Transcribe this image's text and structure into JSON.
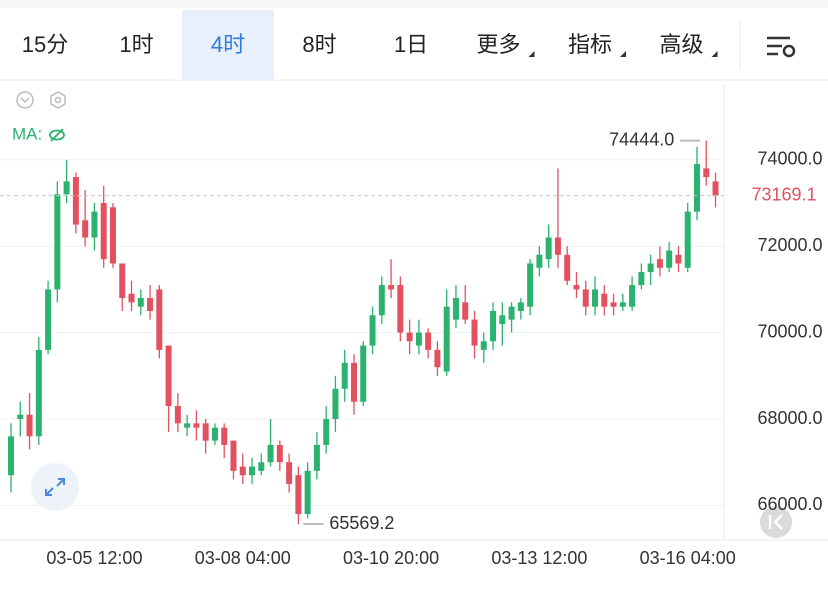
{
  "toolbar": {
    "tabs": [
      {
        "label": "15分",
        "dropdown": false
      },
      {
        "label": "1时",
        "dropdown": false
      },
      {
        "label": "4时",
        "dropdown": false
      },
      {
        "label": "8时",
        "dropdown": false
      },
      {
        "label": "1日",
        "dropdown": false
      },
      {
        "label": "更多",
        "dropdown": true
      },
      {
        "label": "指标",
        "dropdown": true
      },
      {
        "label": "高级",
        "dropdown": true
      }
    ],
    "active": 2
  },
  "indicator": "MA:",
  "chart_data": {
    "type": "candlestick",
    "categories": [
      null,
      null,
      null,
      null,
      null,
      null,
      null,
      null,
      null,
      "03-05 12:00",
      null,
      null,
      null,
      null,
      null,
      null,
      null,
      null,
      null,
      null,
      null,
      null,
      null,
      null,
      null,
      "03-08 04:00",
      null,
      null,
      null,
      null,
      null,
      null,
      null,
      null,
      null,
      null,
      null,
      null,
      null,
      null,
      null,
      "03-10 20:00",
      null,
      null,
      null,
      null,
      null,
      null,
      null,
      null,
      null,
      null,
      null,
      null,
      null,
      null,
      null,
      "03-13 12:00",
      null,
      null,
      null,
      null,
      null,
      null,
      null,
      null,
      null,
      null,
      null,
      null,
      null,
      null,
      null,
      "03-16 04:00",
      null,
      null,
      null
    ],
    "open": [
      66700,
      68000,
      68100,
      67600,
      69600,
      71000,
      73200,
      73600,
      72600,
      72200,
      73000,
      72900,
      71600,
      70900,
      70600,
      70800,
      71000,
      69700,
      68300,
      67800,
      67900,
      67900,
      67500,
      67800,
      67500,
      66900,
      66700,
      66800,
      67000,
      67400,
      67000,
      66700,
      65800,
      66800,
      67400,
      68000,
      68700,
      69300,
      68400,
      69700,
      70400,
      71100,
      71100,
      70000,
      69700,
      70000,
      69600,
      69100,
      70300,
      70700,
      70300,
      69600,
      69800,
      70200,
      70300,
      70500,
      70600,
      71500,
      71700,
      72200,
      71800,
      71100,
      71000,
      70600,
      70900,
      70700,
      70600,
      70600,
      71100,
      71400,
      71700,
      71500,
      71800,
      71500,
      72800,
      73800,
      73500
    ],
    "high": [
      67900,
      68400,
      68600,
      69900,
      71200,
      73500,
      74000,
      73700,
      73300,
      73000,
      73400,
      73000,
      71600,
      71200,
      71000,
      71100,
      71100,
      69700,
      68600,
      68100,
      68200,
      68000,
      67900,
      67900,
      67500,
      67200,
      67100,
      67200,
      68000,
      67500,
      67200,
      66900,
      67000,
      67700,
      68300,
      69000,
      69600,
      69500,
      69800,
      70600,
      71300,
      71700,
      71300,
      70300,
      70300,
      70100,
      69800,
      71000,
      71100,
      71100,
      70500,
      70000,
      70700,
      70700,
      70700,
      70800,
      71700,
      72000,
      72500,
      73800,
      72000,
      71400,
      71200,
      71300,
      71100,
      70900,
      70900,
      71300,
      71600,
      71800,
      72000,
      72100,
      72000,
      73000,
      74300,
      74444,
      73700
    ],
    "low": [
      66300,
      67600,
      67300,
      67400,
      69500,
      70700,
      73000,
      72300,
      72000,
      71900,
      71500,
      71500,
      70500,
      70500,
      70400,
      70300,
      69400,
      67700,
      67700,
      67600,
      67500,
      67200,
      67400,
      67100,
      66600,
      66500,
      66500,
      66700,
      66900,
      66800,
      66300,
      65569.2,
      65700,
      66600,
      67200,
      67700,
      68400,
      68100,
      68300,
      69500,
      70200,
      70800,
      69800,
      69500,
      69500,
      69400,
      69000,
      69000,
      70100,
      70200,
      69400,
      69300,
      69600,
      69700,
      70000,
      70300,
      70400,
      71300,
      71500,
      71500,
      71100,
      70800,
      70400,
      70400,
      70400,
      70400,
      70500,
      70500,
      71000,
      71100,
      71300,
      71400,
      71400,
      71400,
      72600,
      73400,
      72900
    ],
    "close": [
      67600,
      68100,
      67600,
      69600,
      71000,
      73200,
      73500,
      72500,
      72200,
      72800,
      71700,
      71600,
      70800,
      70700,
      70800,
      70500,
      69600,
      68300,
      67900,
      67900,
      67800,
      67500,
      67800,
      67400,
      66800,
      66700,
      66900,
      67000,
      67400,
      67000,
      66500,
      65800,
      66800,
      67400,
      68000,
      68700,
      69300,
      68400,
      69700,
      70400,
      71100,
      71000,
      70000,
      69800,
      70000,
      69600,
      69200,
      70600,
      70800,
      70300,
      69700,
      69800,
      70500,
      70400,
      70600,
      70700,
      71600,
      71800,
      72200,
      71800,
      71200,
      71000,
      70600,
      71000,
      70600,
      70600,
      70700,
      71100,
      71400,
      71600,
      71500,
      71900,
      71600,
      72800,
      73900,
      73600,
      73169.1
    ],
    "high_labels": [
      null,
      null,
      null,
      null,
      null,
      null,
      null,
      null,
      null,
      null,
      null,
      null,
      null,
      null,
      null,
      null,
      null,
      null,
      null,
      null,
      null,
      null,
      null,
      null,
      null,
      null,
      null,
      null,
      null,
      null,
      null,
      null,
      null,
      null,
      null,
      null,
      null,
      null,
      null,
      null,
      null,
      null,
      null,
      null,
      null,
      null,
      null,
      null,
      null,
      null,
      null,
      null,
      null,
      null,
      null,
      null,
      null,
      null,
      null,
      null,
      null,
      null,
      null,
      null,
      null,
      null,
      null,
      null,
      null,
      null,
      null,
      null,
      null,
      null,
      null,
      "74444.0",
      null
    ],
    "low_labels": [
      null,
      null,
      null,
      null,
      null,
      null,
      null,
      null,
      null,
      null,
      null,
      null,
      null,
      null,
      null,
      null,
      null,
      null,
      null,
      null,
      null,
      null,
      null,
      null,
      null,
      null,
      null,
      null,
      null,
      null,
      null,
      "65569.2",
      null,
      null,
      null,
      null,
      null,
      null,
      null,
      null,
      null,
      null,
      null,
      null,
      null,
      null,
      null,
      null,
      null,
      null,
      null,
      null,
      null,
      null,
      null,
      null,
      null,
      null,
      null,
      null,
      null,
      null,
      null,
      null,
      null,
      null,
      null,
      null,
      null,
      null,
      null,
      null,
      null,
      null,
      null,
      null,
      null
    ],
    "close_labels": [
      null,
      null,
      null,
      null,
      null,
      null,
      null,
      null,
      null,
      null,
      null,
      null,
      null,
      null,
      null,
      null,
      null,
      null,
      null,
      null,
      null,
      null,
      null,
      null,
      null,
      null,
      null,
      null,
      null,
      null,
      null,
      null,
      null,
      null,
      null,
      null,
      null,
      null,
      null,
      null,
      null,
      null,
      null,
      null,
      null,
      null,
      null,
      null,
      null,
      null,
      null,
      null,
      null,
      null,
      null,
      null,
      null,
      null,
      null,
      null,
      null,
      null,
      null,
      null,
      null,
      null,
      null,
      null,
      null,
      null,
      null,
      null,
      null,
      null,
      null,
      null,
      "73169.1"
    ],
    "up_color": "#2bb26e",
    "down_color": "#e2515f",
    "ylim": [
      65200,
      75800
    ],
    "yticks": [
      {
        "value": 66000,
        "label": "66000.0"
      },
      {
        "value": 68000,
        "label": "68000.0"
      },
      {
        "value": 70000,
        "label": "70000.0"
      },
      {
        "value": 72000,
        "label": "72000.0"
      },
      {
        "value": 74000,
        "label": "74000.0"
      }
    ],
    "grid": true
  }
}
